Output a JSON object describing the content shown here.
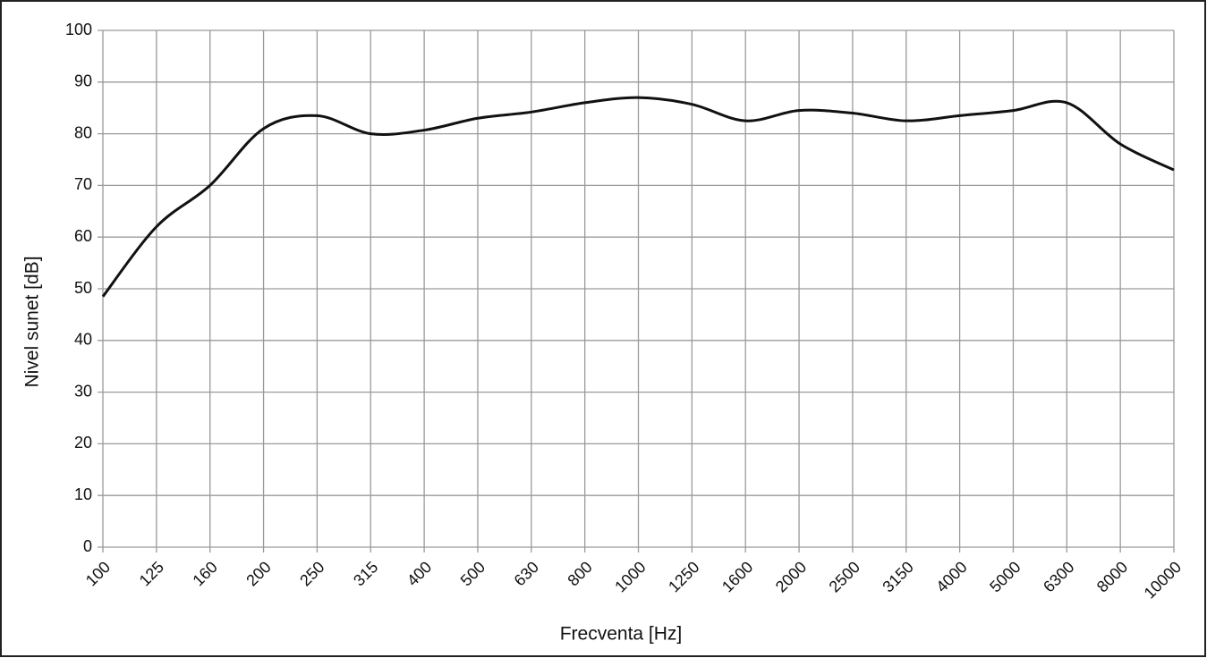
{
  "chart_data": {
    "type": "line",
    "x_label": "Frecventa [Hz]",
    "y_label": "Nivel sunet [dB]",
    "categories": [
      "100",
      "125",
      "160",
      "200",
      "250",
      "315",
      "400",
      "500",
      "630",
      "800",
      "1000",
      "1250",
      "1600",
      "2000",
      "2500",
      "3150",
      "4000",
      "5000",
      "6300",
      "8000",
      "10000"
    ],
    "series": [
      {
        "name": "Nivel sunet",
        "color": "#111111",
        "values": [
          48.5,
          62,
          70,
          81,
          83.5,
          80,
          80.7,
          83,
          84.2,
          86,
          87,
          85.7,
          82.5,
          84.5,
          84,
          82.5,
          83.5,
          84.5,
          86,
          78,
          73
        ]
      }
    ],
    "ylim": [
      0,
      100
    ],
    "yticks": [
      0,
      10,
      20,
      30,
      40,
      50,
      60,
      70,
      80,
      90,
      100
    ],
    "grid": true
  }
}
